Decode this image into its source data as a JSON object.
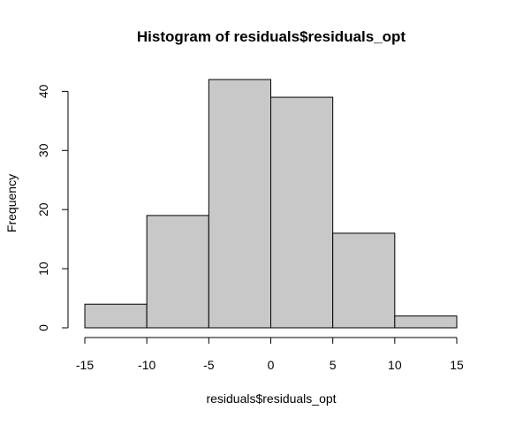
{
  "chart_data": {
    "type": "bar",
    "title": "Histogram of residuals$residuals_opt",
    "xlabel": "residuals$residuals_opt",
    "ylabel": "Frequency",
    "bins": [
      {
        "from": -15,
        "to": -10,
        "count": 4
      },
      {
        "from": -10,
        "to": -5,
        "count": 19
      },
      {
        "from": -5,
        "to": 0,
        "count": 42
      },
      {
        "from": 0,
        "to": 5,
        "count": 39
      },
      {
        "from": 5,
        "to": 10,
        "count": 16
      },
      {
        "from": 10,
        "to": 15,
        "count": 2
      }
    ],
    "x_ticks": [
      -15,
      -10,
      -5,
      0,
      5,
      10,
      15
    ],
    "y_ticks": [
      0,
      10,
      20,
      30,
      40
    ],
    "xlim": [
      -15,
      15
    ],
    "ylim": [
      0,
      42
    ],
    "grid": false,
    "bar_color": "#c8c8c8",
    "bar_edge_color": "#000000"
  }
}
